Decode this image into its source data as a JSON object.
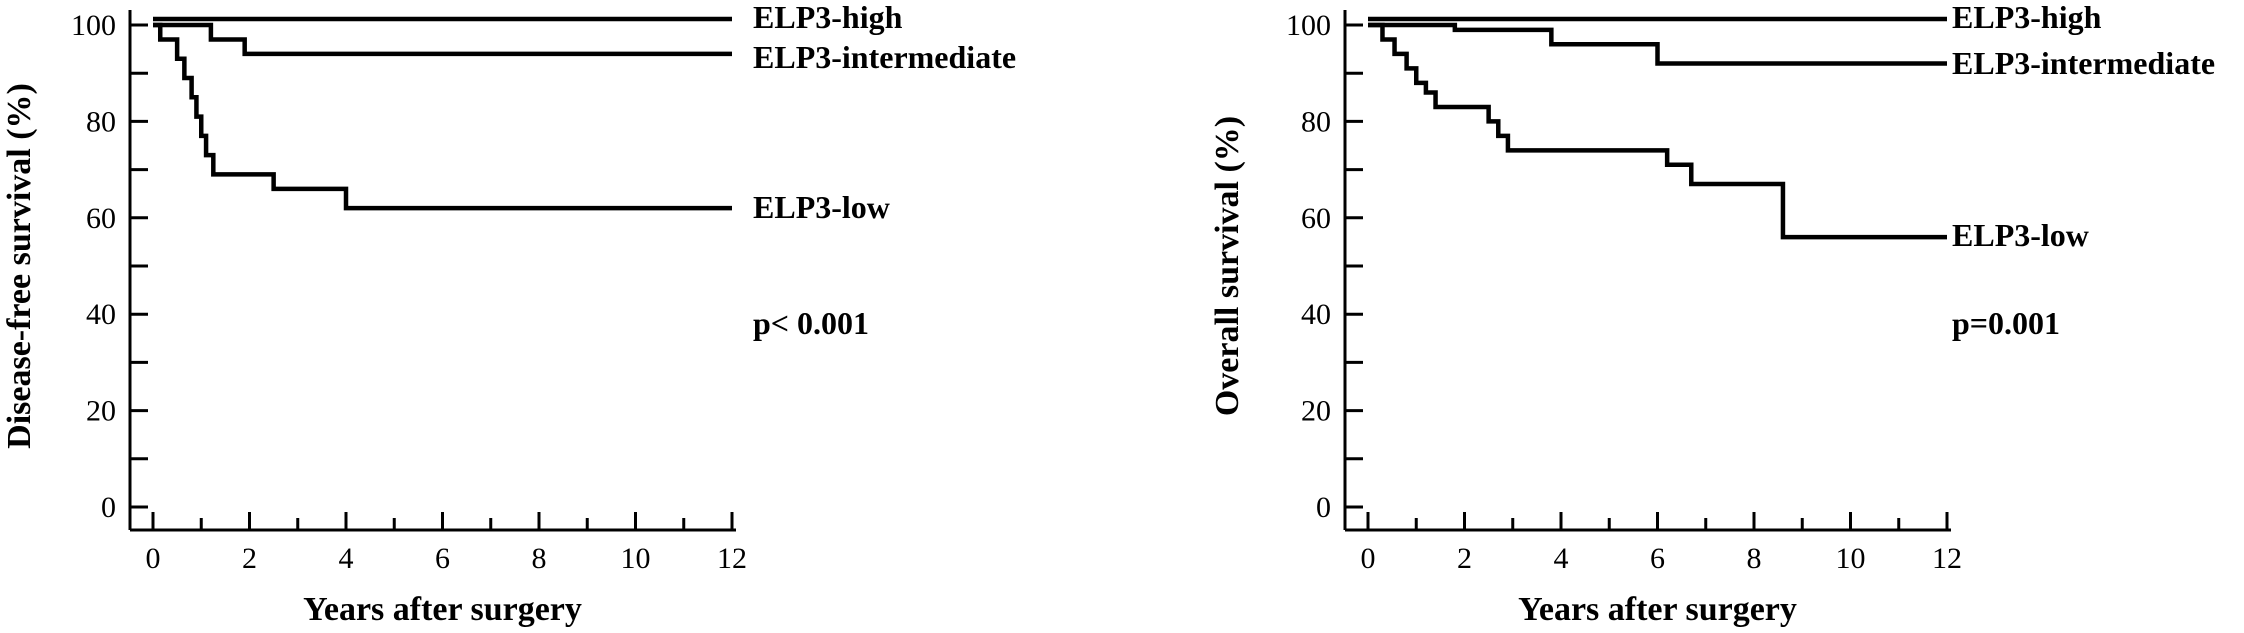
{
  "chart_data": [
    {
      "type": "line",
      "step": true,
      "xlabel": "Years after surgery",
      "ylabel": "Disease-free survival (%)",
      "xlim": [
        0,
        12
      ],
      "ylim": [
        0,
        100
      ],
      "xticks": [
        "0",
        "2",
        "4",
        "6",
        "8",
        "10",
        "12"
      ],
      "yticks": [
        "0",
        "20",
        "40",
        "60",
        "80",
        "100"
      ],
      "grid": false,
      "annotation": "p< 0.001",
      "series": [
        {
          "name": "ELP3-high",
          "x": [
            0,
            12
          ],
          "y": [
            100,
            100
          ]
        },
        {
          "name": "ELP3-intermediate",
          "x": [
            0,
            1.2,
            1.9,
            12
          ],
          "y": [
            100,
            97,
            94,
            94
          ]
        },
        {
          "name": "ELP3-low",
          "x": [
            0,
            0.15,
            0.5,
            0.65,
            0.8,
            0.9,
            1.0,
            1.1,
            1.25,
            2.5,
            4.0,
            12
          ],
          "y": [
            100,
            97,
            93,
            89,
            85,
            81,
            77,
            73,
            69,
            66,
            62,
            62
          ]
        }
      ]
    },
    {
      "type": "line",
      "step": true,
      "xlabel": "Years after surgery",
      "ylabel": "Overall survival (%)",
      "xlim": [
        0,
        12
      ],
      "ylim": [
        0,
        100
      ],
      "xticks": [
        "0",
        "2",
        "4",
        "6",
        "8",
        "10",
        "12"
      ],
      "yticks": [
        "0",
        "20",
        "40",
        "60",
        "80",
        "100"
      ],
      "grid": false,
      "annotation": "p=0.001",
      "series": [
        {
          "name": "ELP3-high",
          "x": [
            0,
            12
          ],
          "y": [
            100,
            100
          ]
        },
        {
          "name": "ELP3-intermediate",
          "x": [
            0,
            1.8,
            3.8,
            6.0,
            12
          ],
          "y": [
            100,
            99,
            96,
            92,
            92
          ]
        },
        {
          "name": "ELP3-low",
          "x": [
            0,
            0.3,
            0.55,
            0.8,
            1.0,
            1.2,
            1.4,
            2.5,
            2.7,
            2.9,
            6.2,
            6.7,
            8.6,
            12
          ],
          "y": [
            100,
            97,
            94,
            91,
            88,
            86,
            83,
            80,
            77,
            74,
            71,
            67,
            56,
            56
          ]
        }
      ]
    }
  ]
}
